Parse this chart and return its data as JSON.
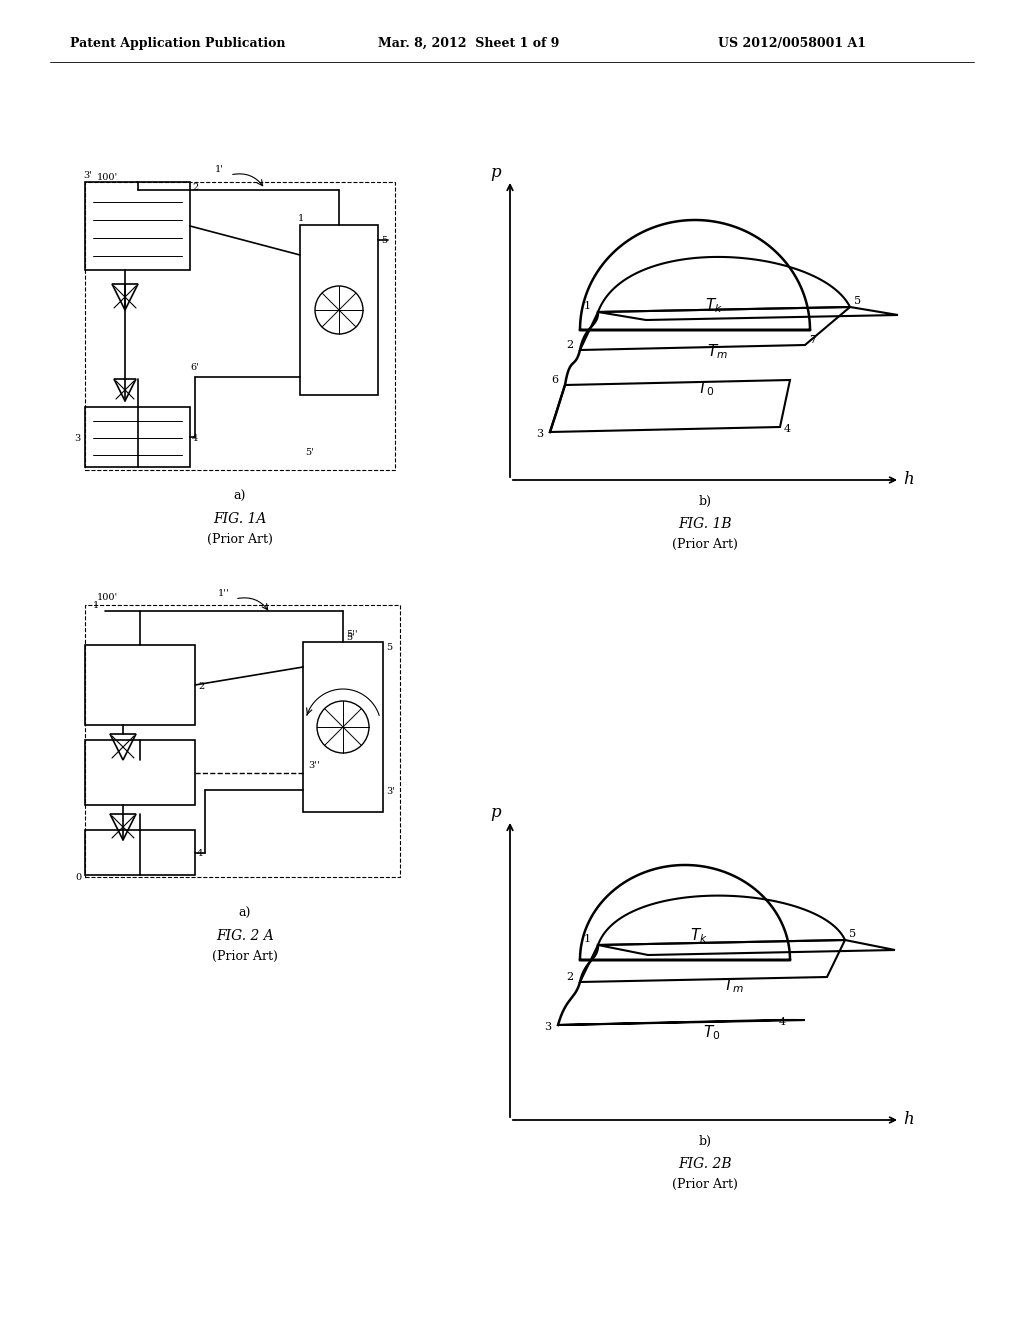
{
  "title_left": "Patent Application Publication",
  "title_mid": "Mar. 8, 2012  Sheet 1 of 9",
  "title_right": "US 2012/0058001 A1",
  "fig1a_label": "FIG. 1A",
  "fig1a_sub": "(Prior Art)",
  "fig1b_label": "FIG. 1B",
  "fig1b_sub": "(Prior Art)",
  "fig2a_label": "FIG. 2 A",
  "fig2a_sub": "(Prior Art)",
  "fig2b_label": "FIG. 2B",
  "fig2b_sub": "(Prior Art)",
  "bg_color": "#ffffff",
  "line_color": "#000000"
}
